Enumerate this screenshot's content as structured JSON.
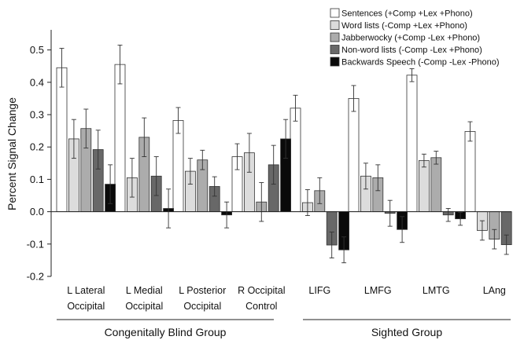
{
  "chart_data": {
    "type": "bar",
    "ylabel": "Percent Signal Change",
    "ylim": [
      -0.2,
      0.55
    ],
    "yticks": [
      "-0.2",
      "-0.1",
      "0.0",
      "0.1",
      "0.2",
      "0.3",
      "0.4",
      "0.5"
    ],
    "yticks_values": [
      -0.2,
      -0.1,
      0.0,
      0.1,
      0.2,
      0.3,
      0.4,
      0.5
    ],
    "grid": false,
    "legend_position": "top-right",
    "categories": [
      [
        "L Lateral",
        "Occipital"
      ],
      [
        "L Medial",
        "Occipital"
      ],
      [
        "L Posterior",
        "Occipital"
      ],
      [
        "R Occipital",
        "Control"
      ],
      [
        "LIFG"
      ],
      [
        "LMFG"
      ],
      [
        "LMTG"
      ],
      [
        "LAng"
      ]
    ],
    "groups": [
      {
        "label": "Congenitally Blind Group",
        "categories": [
          0,
          1,
          2,
          3
        ]
      },
      {
        "label": "Sighted Group",
        "categories": [
          4,
          5,
          6,
          7
        ]
      }
    ],
    "series": [
      {
        "name": "Sentences (+Comp +Lex +Phono)",
        "color": "#ffffff",
        "values": [
          0.445,
          0.455,
          0.282,
          0.17,
          0.32,
          0.35,
          0.422,
          0.248
        ],
        "errors": [
          0.06,
          0.06,
          0.04,
          0.04,
          0.04,
          0.04,
          0.02,
          0.03
        ]
      },
      {
        "name": "Word lists  (-Comp +Lex +Phono)",
        "color": "#dcdcdc",
        "values": [
          0.225,
          0.105,
          0.125,
          0.182,
          0.028,
          0.11,
          0.158,
          -0.058
        ],
        "errors": [
          0.06,
          0.06,
          0.04,
          0.06,
          0.04,
          0.04,
          0.02,
          0.03
        ]
      },
      {
        "name": "Jabberwocky (+Comp -Lex +Phono)",
        "color": "#acacac",
        "values": [
          0.257,
          0.23,
          0.16,
          0.03,
          0.065,
          0.105,
          0.167,
          -0.085
        ],
        "errors": [
          0.06,
          0.06,
          0.03,
          0.06,
          0.04,
          0.04,
          0.02,
          0.03
        ]
      },
      {
        "name": "Non-word lists (-Comp -Lex +Phono)",
        "color": "#686868",
        "values": [
          0.192,
          0.11,
          0.078,
          0.145,
          -0.103,
          -0.005,
          -0.01,
          -0.102
        ],
        "errors": [
          0.06,
          0.06,
          0.03,
          0.06,
          0.04,
          0.04,
          0.02,
          0.03
        ]
      },
      {
        "name": "Backwards Speech (-Comp -Lex -Phono)",
        "color": "#0a0a0a",
        "values": [
          0.085,
          0.01,
          -0.01,
          0.225,
          -0.118,
          -0.055,
          -0.022,
          -0.13
        ],
        "errors": [
          0.06,
          0.06,
          0.04,
          0.06,
          0.04,
          0.04,
          0.02,
          0.03
        ]
      }
    ]
  }
}
